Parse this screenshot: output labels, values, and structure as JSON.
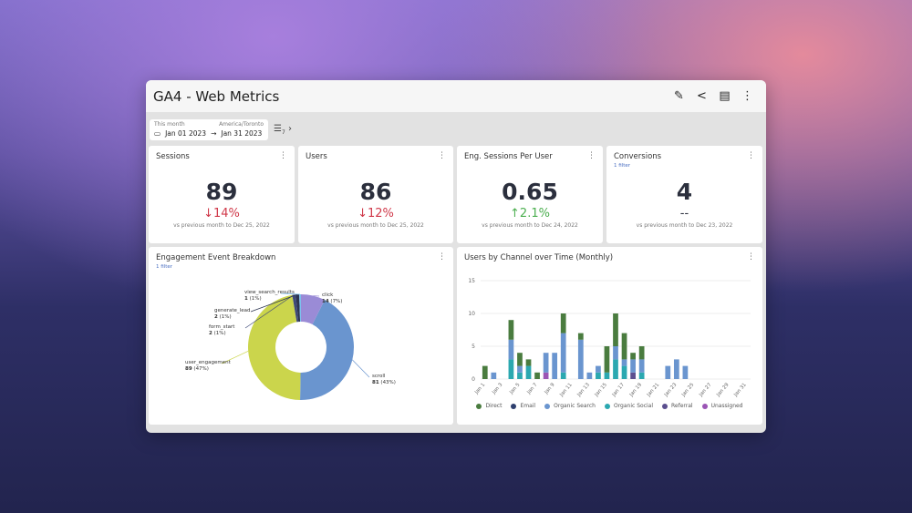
{
  "header": {
    "title": "GA4 - Web Metrics",
    "icons": [
      "pencil-icon",
      "share-icon",
      "pdf-icon",
      "more-vert-icon"
    ]
  },
  "date_range": {
    "preset": "This month",
    "timezone": "America/Toronto",
    "start": "Jan 01 2023",
    "end": "Jan 31 2023"
  },
  "filters": {
    "count": "7"
  },
  "kpis": [
    {
      "title": "Sessions",
      "filter": "",
      "value": "89",
      "change": "↓14%",
      "direction": "down",
      "comparison": "vs previous month to Dec 25, 2022"
    },
    {
      "title": "Users",
      "filter": "",
      "value": "86",
      "change": "↓12%",
      "direction": "down",
      "comparison": "vs previous month to Dec 25, 2022"
    },
    {
      "title": "Eng. Sessions Per User",
      "filter": "",
      "value": "0.65",
      "change": "↑2.1%",
      "direction": "up",
      "comparison": "vs previous month to Dec 24, 2022"
    },
    {
      "title": "Conversions",
      "filter": "1 filter",
      "value": "4",
      "change": "--",
      "direction": "none",
      "comparison": "vs previous month to Dec 23, 2022"
    }
  ],
  "colors": {
    "down": "#d0394a",
    "up": "#4caf50",
    "none": "#2b2f3d"
  },
  "chart_data": [
    {
      "type": "pie",
      "title": "Engagement Event Breakdown",
      "filter": "1 filter",
      "donut": true,
      "slices": [
        {
          "label": "click",
          "value": 14,
          "pct": "7%",
          "color": "#9a8bd6"
        },
        {
          "label": "scroll",
          "value": 81,
          "pct": "43%",
          "color": "#6a95cf"
        },
        {
          "label": "user_engagement",
          "value": 89,
          "pct": "47%",
          "color": "#cbd54c"
        },
        {
          "label": "form_start",
          "value": 2,
          "pct": "1%",
          "color": "#3f4a7a"
        },
        {
          "label": "generate_lead",
          "value": 2,
          "pct": "1%",
          "color": "#2d3550"
        },
        {
          "label": "view_search_results",
          "value": 1,
          "pct": "1%",
          "color": "#7cc0ec"
        }
      ]
    },
    {
      "type": "bar",
      "stacked": true,
      "title": "Users by Channel over Time (Monthly)",
      "ylim": [
        0,
        15
      ],
      "yticks": [
        0,
        5,
        10,
        15
      ],
      "grid": true,
      "legend": "bottom",
      "categories": [
        "Jan 1",
        "Jan 2",
        "Jan 3",
        "Jan 4",
        "Jan 5",
        "Jan 6",
        "Jan 7",
        "Jan 8",
        "Jan 9",
        "Jan 10",
        "Jan 11",
        "Jan 12",
        "Jan 13",
        "Jan 14",
        "Jan 15",
        "Jan 16",
        "Jan 17",
        "Jan 18",
        "Jan 19",
        "Jan 20",
        "Jan 21",
        "Jan 22",
        "Jan 23",
        "Jan 24",
        "Jan 25",
        "Jan 26",
        "Jan 27",
        "Jan 28",
        "Jan 29",
        "Jan 30",
        "Jan 31"
      ],
      "xtick_labels": [
        "Jan 1",
        "Jan 3",
        "Jan 5",
        "Jan 7",
        "Jan 9",
        "Jan 11",
        "Jan 13",
        "Jan 15",
        "Jan 17",
        "Jan 19",
        "Jan 21",
        "Jan 23",
        "Jan 25",
        "Jan 27",
        "Jan 29",
        "Jan 31"
      ],
      "series": [
        {
          "name": "Unassigned",
          "color": "#9b55b5",
          "values": [
            0,
            0,
            0,
            0,
            0,
            0,
            0,
            1,
            0,
            0,
            0,
            0,
            0,
            0,
            0,
            0,
            0,
            0,
            0,
            0,
            0,
            0,
            0,
            0,
            0,
            0,
            0,
            0,
            0,
            0,
            0
          ]
        },
        {
          "name": "Referral",
          "color": "#5b4f8f",
          "values": [
            0,
            0,
            0,
            0,
            0,
            0,
            0,
            0,
            0,
            0,
            0,
            0,
            0,
            0,
            0,
            0,
            0,
            1,
            0,
            0,
            0,
            0,
            0,
            0,
            0,
            0,
            0,
            0,
            0,
            0,
            0
          ]
        },
        {
          "name": "Organic Social",
          "color": "#2ba8b0",
          "values": [
            0,
            0,
            0,
            3,
            1,
            2,
            0,
            0,
            0,
            1,
            0,
            0,
            0,
            1,
            1,
            3,
            2,
            0,
            1,
            0,
            0,
            0,
            0,
            0,
            0,
            0,
            0,
            0,
            0,
            0,
            0
          ]
        },
        {
          "name": "Organic Search",
          "color": "#6a95cf",
          "values": [
            0,
            1,
            0,
            3,
            1,
            0,
            0,
            3,
            4,
            6,
            0,
            6,
            1,
            1,
            0,
            2,
            1,
            2,
            2,
            0,
            0,
            2,
            3,
            2,
            0,
            0,
            0,
            0,
            0,
            0,
            0
          ]
        },
        {
          "name": "Email",
          "color": "#2e3f6e",
          "values": [
            0,
            0,
            0,
            0,
            0,
            0,
            0,
            0,
            0,
            0,
            0,
            0,
            0,
            0,
            0,
            0,
            0,
            0,
            0,
            0,
            0,
            0,
            0,
            0,
            0,
            0,
            0,
            0,
            0,
            0,
            0
          ]
        },
        {
          "name": "Direct",
          "color": "#4a7c3f",
          "values": [
            2,
            0,
            0,
            3,
            2,
            1,
            1,
            0,
            0,
            3,
            0,
            1,
            0,
            0,
            4,
            5,
            4,
            1,
            2,
            0,
            0,
            0,
            0,
            0,
            0,
            0,
            0,
            0,
            0,
            0,
            0
          ]
        }
      ],
      "legend_order": [
        "Direct",
        "Email",
        "Organic Search",
        "Organic Social",
        "Referral",
        "Unassigned"
      ]
    }
  ]
}
